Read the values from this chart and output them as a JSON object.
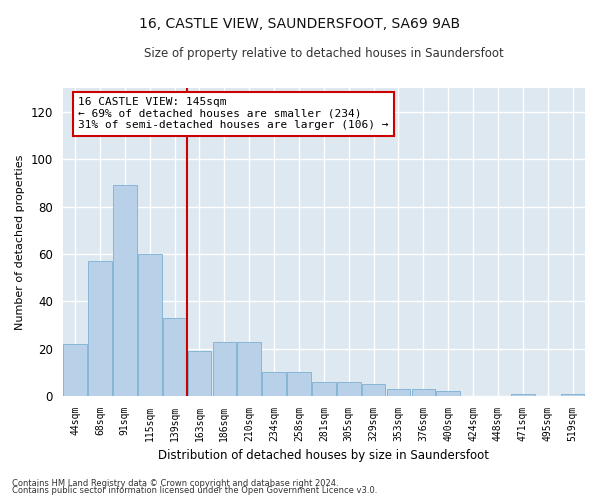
{
  "title": "16, CASTLE VIEW, SAUNDERSFOOT, SA69 9AB",
  "subtitle": "Size of property relative to detached houses in Saundersfoot",
  "xlabel": "Distribution of detached houses by size in Saundersfoot",
  "ylabel": "Number of detached properties",
  "footnote1": "Contains HM Land Registry data © Crown copyright and database right 2024.",
  "footnote2": "Contains public sector information licensed under the Open Government Licence v3.0.",
  "categories": [
    "44sqm",
    "68sqm",
    "91sqm",
    "115sqm",
    "139sqm",
    "163sqm",
    "186sqm",
    "210sqm",
    "234sqm",
    "258sqm",
    "281sqm",
    "305sqm",
    "329sqm",
    "353sqm",
    "376sqm",
    "400sqm",
    "424sqm",
    "448sqm",
    "471sqm",
    "495sqm",
    "519sqm"
  ],
  "values": [
    22,
    57,
    89,
    60,
    33,
    19,
    23,
    23,
    10,
    10,
    6,
    6,
    5,
    3,
    3,
    2,
    0,
    0,
    1,
    0,
    1
  ],
  "bar_color": "#b8d0e8",
  "bar_edge_color": "#7aafd4",
  "ylim": [
    0,
    130
  ],
  "yticks": [
    0,
    20,
    40,
    60,
    80,
    100,
    120
  ],
  "vline_x_index": 4,
  "vline_color": "#cc0000",
  "annotation_text": "16 CASTLE VIEW: 145sqm\n← 69% of detached houses are smaller (234)\n31% of semi-detached houses are larger (106) →",
  "annotation_box_color": "#ffffff",
  "annotation_box_edge": "#cc0000",
  "fig_bg_color": "#ffffff",
  "plot_bg_color": "#dde8f0"
}
